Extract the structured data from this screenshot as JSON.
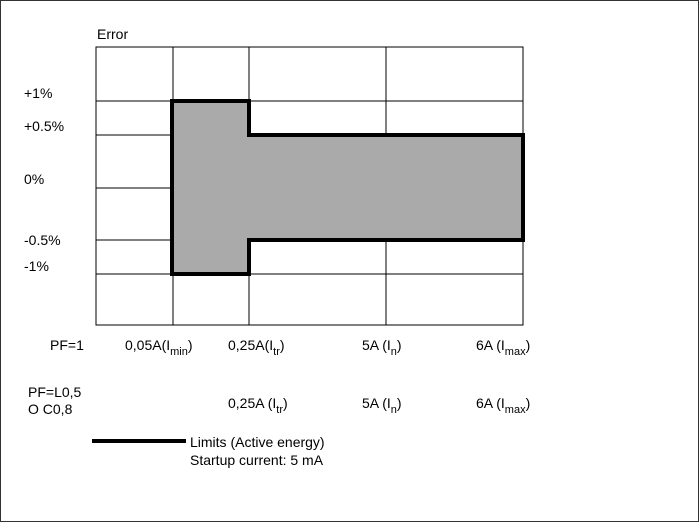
{
  "title": "Error",
  "y_labels": [
    "+1%",
    "+0.5%",
    "0%",
    "-0.5%",
    "-1%"
  ],
  "pf1": {
    "label": "PF=1",
    "ticks": [
      {
        "main": "0,05A(I",
        "sub": "min",
        "close": ")"
      },
      {
        "main": "0,25A(I",
        "sub": "tr",
        "close": ")"
      },
      {
        "main": "5A (I",
        "sub": "n",
        "close": ")"
      },
      {
        "main": "6A (I",
        "sub": "max",
        "close": ")"
      }
    ]
  },
  "pf2": {
    "label_line1": "PF=L0,5",
    "label_line2": "O C0,8",
    "ticks": [
      {
        "main": "0,25A (I",
        "sub": "tr",
        "close": ")"
      },
      {
        "main": "5A (I",
        "sub": "n",
        "close": ")"
      },
      {
        "main": "6A (I",
        "sub": "max",
        "close": ")"
      }
    ]
  },
  "legend": {
    "line1": "Limits (Active energy)",
    "line2": "Startup current: 5 mA"
  },
  "colors": {
    "fill": "#aaaaaa",
    "outline": "#000000",
    "grid": "#000000"
  }
}
